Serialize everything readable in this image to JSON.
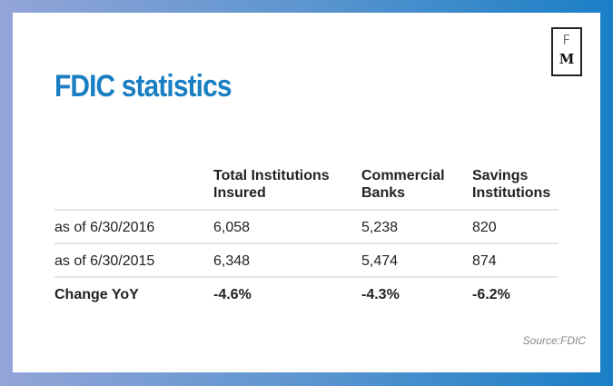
{
  "title": "FDIC statistics",
  "logo": {
    "top": "F",
    "bottom": "M"
  },
  "source": "Source:FDIC",
  "colors": {
    "title": "#1a7fc2",
    "bg_left": "#93a5d8",
    "bg_right": "#1a7fc6"
  },
  "chart_data": {
    "type": "table",
    "title": "FDIC statistics",
    "columns": [
      "",
      "Total Institutions Insured",
      "Commercial Banks",
      "Savings Institutions"
    ],
    "rows": [
      [
        "as of 6/30/2016",
        "6,058",
        "5,238",
        "820"
      ],
      [
        "as of 6/30/2015",
        "6,348",
        "5,474",
        "874"
      ],
      [
        "Change YoY",
        "-4.6%",
        "-4.3%",
        "-6.2%"
      ]
    ]
  }
}
